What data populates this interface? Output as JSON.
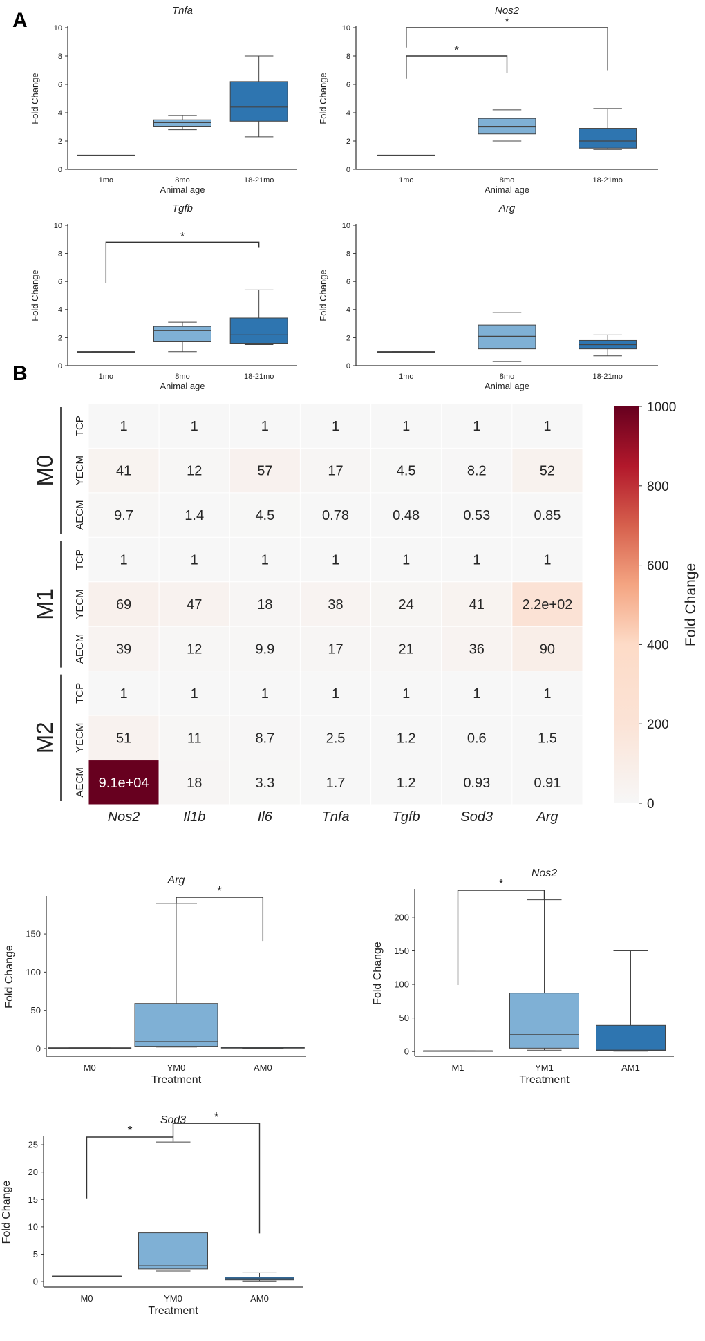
{
  "panel_labels": {
    "a": "A",
    "b": "B"
  },
  "colors": {
    "age_1": "#9ecae1",
    "age_2": "#7fb0d5",
    "age_3": "#2e75b0",
    "axis": "#333333",
    "heat_low": "#f7f7f7",
    "heat_mid": "#fddbc7",
    "heat_high": "#67001f"
  },
  "chart_data": [
    {
      "id": "tnfa",
      "type": "box",
      "title": "Tnfa",
      "xlabel": "Animal age",
      "ylabel": "Fold Change",
      "ylim": [
        0,
        10
      ],
      "yticks": [
        0,
        2,
        4,
        6,
        8,
        10
      ],
      "categories": [
        "1mo",
        "8mo",
        "18-21mo"
      ],
      "boxes": [
        {
          "category": "1mo",
          "min": 1,
          "q1": 1,
          "median": 1,
          "q3": 1,
          "max": 1
        },
        {
          "category": "8mo",
          "min": 2.8,
          "q1": 3.0,
          "median": 3.3,
          "q3": 3.5,
          "max": 3.8
        },
        {
          "category": "18-21mo",
          "min": 2.3,
          "q1": 3.4,
          "median": 4.4,
          "q3": 6.2,
          "max": 8.0
        }
      ],
      "significance": []
    },
    {
      "id": "nos2_age",
      "type": "box",
      "title": "Nos2",
      "xlabel": "Animal age",
      "ylabel": "Fold Change",
      "ylim": [
        0,
        10
      ],
      "yticks": [
        0,
        2,
        4,
        6,
        8,
        10
      ],
      "categories": [
        "1mo",
        "8mo",
        "18-21mo"
      ],
      "boxes": [
        {
          "category": "1mo",
          "min": 1,
          "q1": 1,
          "median": 1,
          "q3": 1,
          "max": 1
        },
        {
          "category": "8mo",
          "min": 2.0,
          "q1": 2.5,
          "median": 3.0,
          "q3": 3.6,
          "max": 4.2
        },
        {
          "category": "18-21mo",
          "min": 1.4,
          "q1": 1.5,
          "median": 2.0,
          "q3": 2.9,
          "max": 4.3
        }
      ],
      "significance": [
        {
          "from": 0,
          "to": 1,
          "level": 8.0,
          "low_from": 6.4,
          "low_to": 6.8,
          "label": "*"
        },
        {
          "from": 0,
          "to": 2,
          "level": 10.0,
          "low_from": 8.6,
          "low_to": 7.0,
          "label": "*"
        }
      ]
    },
    {
      "id": "tgfb",
      "type": "box",
      "title": "Tgfb",
      "xlabel": "Animal age",
      "ylabel": "Fold Change",
      "ylim": [
        0,
        10
      ],
      "yticks": [
        0,
        2,
        4,
        6,
        8,
        10
      ],
      "categories": [
        "1mo",
        "8mo",
        "18-21mo"
      ],
      "boxes": [
        {
          "category": "1mo",
          "min": 1,
          "q1": 1,
          "median": 1,
          "q3": 1,
          "max": 1
        },
        {
          "category": "8mo",
          "min": 1.0,
          "q1": 1.7,
          "median": 2.5,
          "q3": 2.8,
          "max": 3.1
        },
        {
          "category": "18-21mo",
          "min": 1.5,
          "q1": 1.6,
          "median": 2.2,
          "q3": 3.4,
          "max": 5.4
        }
      ],
      "significance": [
        {
          "from": 0,
          "to": 2,
          "level": 8.8,
          "low_from": 5.9,
          "low_to": 8.4,
          "label": "*"
        }
      ]
    },
    {
      "id": "arg_age",
      "type": "box",
      "title": "Arg",
      "xlabel": "Animal age",
      "ylabel": "Fold Change",
      "ylim": [
        0,
        10
      ],
      "yticks": [
        0,
        2,
        4,
        6,
        8,
        10
      ],
      "categories": [
        "1mo",
        "8mo",
        "18-21mo"
      ],
      "boxes": [
        {
          "category": "1mo",
          "min": 1,
          "q1": 1,
          "median": 1,
          "q3": 1,
          "max": 1
        },
        {
          "category": "8mo",
          "min": 0.3,
          "q1": 1.2,
          "median": 2.1,
          "q3": 2.9,
          "max": 3.8
        },
        {
          "category": "18-21mo",
          "min": 0.7,
          "q1": 1.2,
          "median": 1.5,
          "q3": 1.8,
          "max": 2.2
        }
      ],
      "significance": []
    },
    {
      "id": "heatmap",
      "type": "heatmap",
      "columns": [
        "Nos2",
        "Il1b",
        "Il6",
        "Tnfa",
        "Tgfb",
        "Sod3",
        "Arg"
      ],
      "groups": [
        {
          "name": "M0",
          "rows": [
            {
              "label": "TCP",
              "values": [
                1,
                1,
                1,
                1,
                1,
                1,
                1
              ],
              "text": [
                "1",
                "1",
                "1",
                "1",
                "1",
                "1",
                "1"
              ]
            },
            {
              "label": "YECM",
              "values": [
                41,
                12,
                57,
                17,
                4.5,
                8.2,
                52
              ],
              "text": [
                "41",
                "12",
                "57",
                "17",
                "4.5",
                "8.2",
                "52"
              ]
            },
            {
              "label": "AECM",
              "values": [
                9.7,
                1.4,
                4.5,
                0.78,
                0.48,
                0.53,
                0.85
              ],
              "text": [
                "9.7",
                "1.4",
                "4.5",
                "0.78",
                "0.48",
                "0.53",
                "0.85"
              ]
            }
          ]
        },
        {
          "name": "M1",
          "rows": [
            {
              "label": "TCP",
              "values": [
                1,
                1,
                1,
                1,
                1,
                1,
                1
              ],
              "text": [
                "1",
                "1",
                "1",
                "1",
                "1",
                "1",
                "1"
              ]
            },
            {
              "label": "YECM",
              "values": [
                69,
                47,
                18,
                38,
                24,
                41,
                220
              ],
              "text": [
                "69",
                "47",
                "18",
                "38",
                "24",
                "41",
                "2.2e+02"
              ]
            },
            {
              "label": "AECM",
              "values": [
                39,
                12,
                9.9,
                17,
                21,
                36,
                90
              ],
              "text": [
                "39",
                "12",
                "9.9",
                "17",
                "21",
                "36",
                "90"
              ]
            }
          ]
        },
        {
          "name": "M2",
          "rows": [
            {
              "label": "TCP",
              "values": [
                1,
                1,
                1,
                1,
                1,
                1,
                1
              ],
              "text": [
                "1",
                "1",
                "1",
                "1",
                "1",
                "1",
                "1"
              ]
            },
            {
              "label": "YECM",
              "values": [
                51,
                11,
                8.7,
                2.5,
                1.2,
                0.6,
                1.5
              ],
              "text": [
                "51",
                "11",
                "8.7",
                "2.5",
                "1.2",
                "0.6",
                "1.5"
              ]
            },
            {
              "label": "AECM",
              "values": [
                91000,
                18,
                3.3,
                1.7,
                1.2,
                0.93,
                0.91
              ],
              "text": [
                "9.1e+04",
                "18",
                "3.3",
                "1.7",
                "1.2",
                "0.93",
                "0.91"
              ]
            }
          ]
        }
      ],
      "colorbar": {
        "label": "Fold Change",
        "range": [
          0,
          1000
        ],
        "ticks": [
          0,
          200,
          400,
          600,
          800,
          1000
        ]
      }
    },
    {
      "id": "arg_treat",
      "type": "box",
      "title": "Arg",
      "xlabel": "Treatment",
      "ylabel": "Fold Change",
      "ylim": [
        -10,
        198
      ],
      "yticks": [
        0,
        50,
        100,
        150
      ],
      "categories": [
        "M0",
        "YM0",
        "AM0"
      ],
      "boxes": [
        {
          "category": "M0",
          "min": 1,
          "q1": 1,
          "median": 1,
          "q3": 1,
          "max": 1
        },
        {
          "category": "YM0",
          "min": 2,
          "q1": 3,
          "median": 9,
          "q3": 59,
          "max": 190
        },
        {
          "category": "AM0",
          "min": 0.4,
          "q1": 0.6,
          "median": 0.9,
          "q3": 1.8,
          "max": 2.2
        }
      ],
      "significance": [
        {
          "from": 1,
          "to": 2,
          "level": 198,
          "low_from": 190,
          "low_to": 140,
          "label": "*"
        }
      ]
    },
    {
      "id": "nos2_treat",
      "type": "box",
      "title": "Nos2",
      "xlabel": "Treatment",
      "ylabel": "Fold Change",
      "ylim": [
        -7,
        240
      ],
      "yticks": [
        0,
        50,
        100,
        150,
        200
      ],
      "categories": [
        "M1",
        "YM1",
        "AM1"
      ],
      "boxes": [
        {
          "category": "M1",
          "min": 1,
          "q1": 1,
          "median": 1,
          "q3": 1,
          "max": 1
        },
        {
          "category": "YM1",
          "min": 2,
          "q1": 5,
          "median": 25,
          "q3": 87,
          "max": 226
        },
        {
          "category": "AM1",
          "min": 0.5,
          "q1": 1,
          "median": 2,
          "q3": 39,
          "max": 150
        }
      ],
      "significance": [
        {
          "from": 0,
          "to": 1,
          "level": 240,
          "low_from": 99,
          "low_to": 226,
          "label": "*"
        }
      ]
    },
    {
      "id": "sod3",
      "type": "box",
      "title": "Sod3",
      "xlabel": "Treatment",
      "ylabel": "Fold Change",
      "ylim": [
        -1,
        26.4
      ],
      "yticks": [
        0,
        5,
        10,
        15,
        20,
        25
      ],
      "categories": [
        "M0",
        "YM0",
        "AM0"
      ],
      "boxes": [
        {
          "category": "M0",
          "min": 1,
          "q1": 1,
          "median": 1,
          "q3": 1,
          "max": 1
        },
        {
          "category": "YM0",
          "min": 1.9,
          "q1": 2.3,
          "median": 2.9,
          "q3": 8.9,
          "max": 25.5
        },
        {
          "category": "AM0",
          "min": 0.1,
          "q1": 0.3,
          "median": 0.5,
          "q3": 0.8,
          "max": 1.6
        }
      ],
      "significance": [
        {
          "from": 0,
          "to": 1,
          "level": 26.4,
          "low_from": 15.2,
          "low_to": 25.6,
          "label": "*"
        },
        {
          "from": 1,
          "to": 2,
          "level": 28.9,
          "low_from": 26.4,
          "low_to": 8.8,
          "label": "*"
        }
      ]
    }
  ]
}
